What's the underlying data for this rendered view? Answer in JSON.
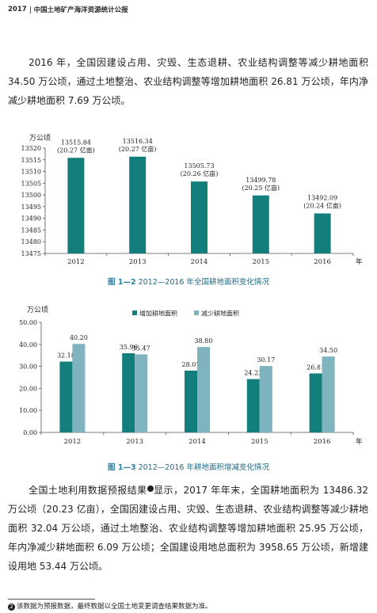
{
  "header": {
    "year": "2017",
    "title": "中国土地矿产海洋资源统计公报"
  },
  "paragraph1": "2016 年，全国因建设占用、灾毁、生态退耕、农业结构调整等减少耕地面积 34.50 万公顷，通过土地整治、农业结构调整等增加耕地面积 26.81 万公顷，年内净减少耕地面积 7.69 万公顷。",
  "figure1": {
    "caption_num": "图 1—2",
    "caption_text": "2012—2016 年全国耕地面积变化情况",
    "color": "#137f7d",
    "chart_data": {
      "type": "bar",
      "ylabel": "万公顷",
      "xunit": "年",
      "categories": [
        "2012",
        "2013",
        "2014",
        "2015",
        "2016"
      ],
      "values": [
        13515.84,
        13516.34,
        13505.73,
        13499.78,
        13492.09
      ],
      "value_labels": [
        "13515.84",
        "13516.34",
        "13505.73",
        "13499.78",
        "13492.09"
      ],
      "sub_labels": [
        "(20.27 亿亩)",
        "(20.27 亿亩)",
        "(20.26 亿亩)",
        "(20.25 亿亩)",
        "(20.24 亿亩)"
      ],
      "ylim": [
        13475,
        13520
      ],
      "yticks": [
        "13520",
        "13515",
        "13510",
        "13505",
        "13500",
        "13495",
        "13490",
        "13485",
        "13480",
        "13475"
      ]
    }
  },
  "figure2": {
    "caption_num": "图 1—3",
    "caption_text": "2012—2016 年耕地面积增减变化情况",
    "chart_data": {
      "type": "bar",
      "ylabel": "万公顷",
      "xunit": "年",
      "categories": [
        "2012",
        "2013",
        "2014",
        "2015",
        "2016"
      ],
      "series": [
        {
          "name": "增加耕地面积",
          "color": "#137f7d",
          "values": [
            32.18,
            35.96,
            28.07,
            24.23,
            26.81
          ],
          "labels": [
            "32.18",
            "35.96",
            "28.07",
            "24.23",
            "26.81"
          ]
        },
        {
          "name": "减少耕地面积",
          "color": "#7fb3bd",
          "values": [
            40.2,
            35.47,
            38.8,
            30.17,
            34.5
          ],
          "labels": [
            "40.20",
            "35.47",
            "38.80",
            "30.17",
            "34.50"
          ]
        }
      ],
      "ylim": [
        0,
        50
      ],
      "yticks": [
        "50.00",
        "40.00",
        "30.00",
        "20.00",
        "10.00",
        "0.00"
      ],
      "legend": "top"
    }
  },
  "paragraph2": {
    "before_note": "全国土地利用数据预报结果",
    "note_mark": "❷",
    "after_note": "显示，2017 年年末，全国耕地面积为 13486.32 万公顷（20.23 亿亩），全国因建设占用、灾毁、生态退耕、农业结构调整等减少耕地面积 32.04 万公顷，通过土地整治、农业结构调整等增加耕地面积 25.95 万公顷，年内净减少耕地面积 6.09 万公顷；全国建设用地总面积为 3958.65 万公顷，新增建设用地 53.44 万公顷。"
  },
  "footnote": {
    "mark": "❷",
    "text": "该数据为预报数据，最终数据以全国土地变更调查结果数据为准。"
  }
}
